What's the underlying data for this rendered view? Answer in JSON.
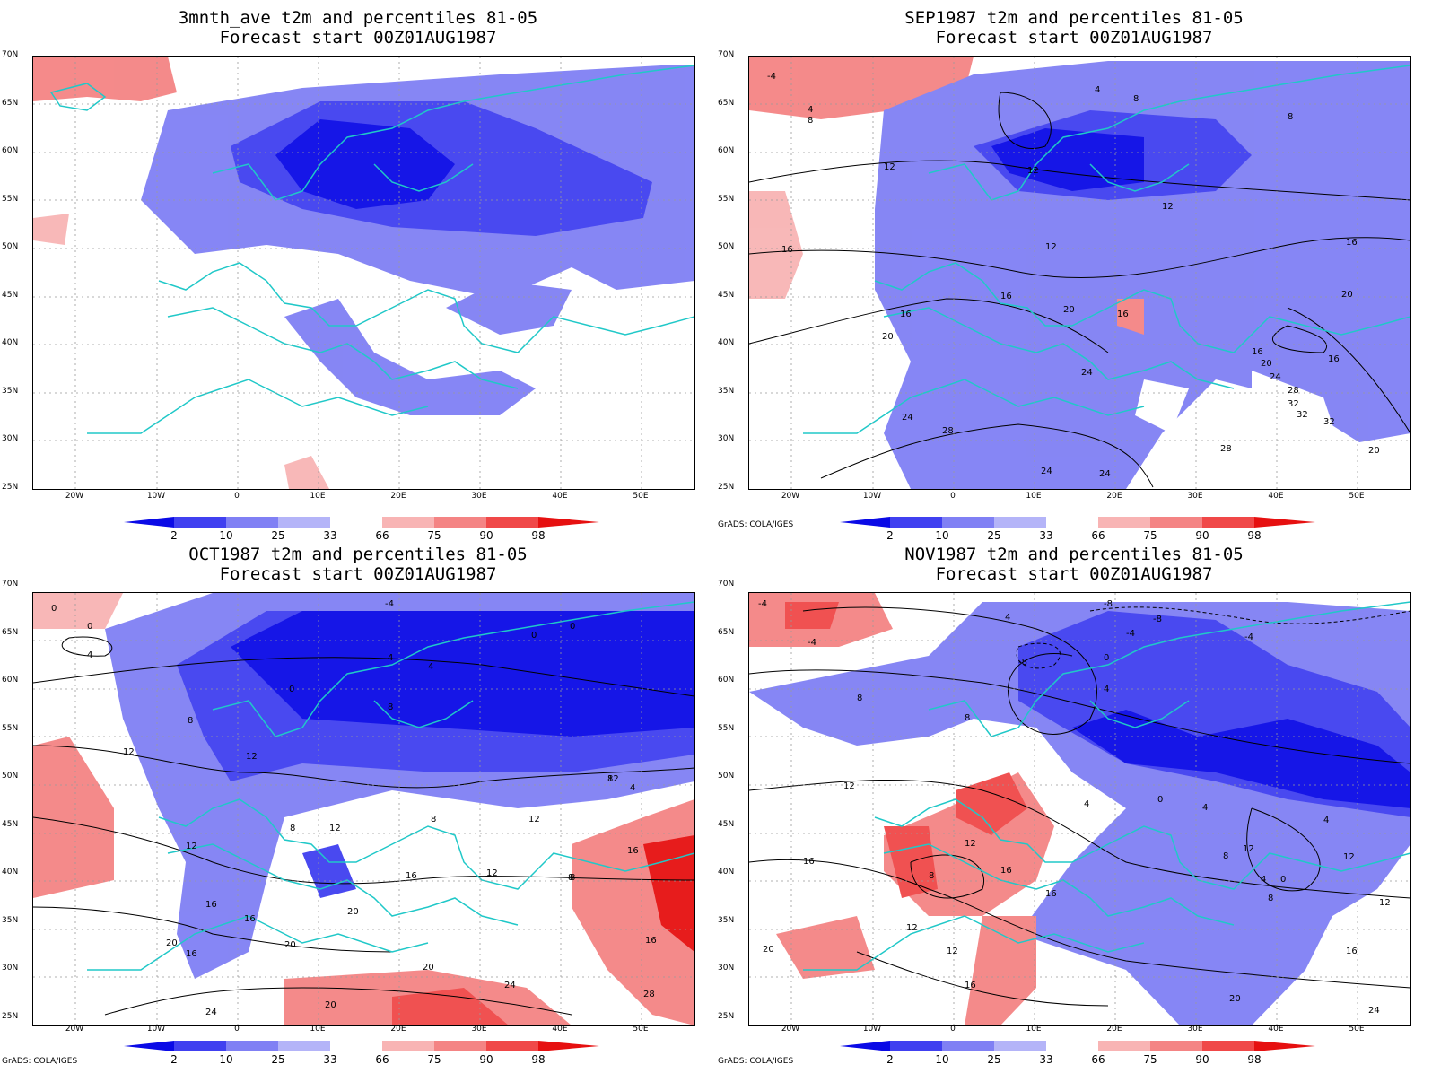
{
  "panels": [
    {
      "id": "p1",
      "title": "3mnth_ave t2m and percentiles 81-05",
      "subtitle": "Forecast start 00Z01AUG1987",
      "credit": "",
      "contour_labels": []
    },
    {
      "id": "p2",
      "title": "SEP1987 t2m and percentiles 81-05",
      "subtitle": "Forecast start 00Z01AUG1987",
      "credit": "GrADS: COLA/IGES",
      "contour_labels": [
        "-4",
        "4",
        "8",
        "4",
        "8",
        "8",
        "12",
        "12",
        "12",
        "16",
        "16",
        "12",
        "16",
        "16",
        "20",
        "20",
        "16",
        "20",
        "24",
        "24",
        "28",
        "24",
        "24",
        "28",
        "32",
        "32",
        "32",
        "20",
        "16",
        "16",
        "20",
        "24",
        "28"
      ]
    },
    {
      "id": "p3",
      "title": "OCT1987 t2m and percentiles 81-05",
      "subtitle": "Forecast start 00Z01AUG1987",
      "credit": "GrADS: COLA/IGES",
      "contour_labels": [
        "0",
        "0",
        "4",
        "-4",
        "4",
        "0",
        "0",
        "0",
        "8",
        "8",
        "4",
        "8",
        "12",
        "4",
        "12",
        "8",
        "8",
        "12",
        "12",
        "12",
        "12",
        "8",
        "16",
        "16",
        "20",
        "16",
        "20",
        "16",
        "20",
        "20",
        "20",
        "24",
        "24",
        "28",
        "16",
        "12",
        "8",
        "16"
      ]
    },
    {
      "id": "p4",
      "title": "NOV1987 t2m and percentiles 81-05",
      "subtitle": "Forecast start 00Z01AUG1987",
      "credit": "GrADS: COLA/IGES",
      "contour_labels": [
        "-4",
        "-4",
        "-8",
        "-8",
        "-4",
        "0",
        "4",
        "-4",
        "-8",
        "4",
        "8",
        "8",
        "12",
        "4",
        "0",
        "4",
        "4",
        "8",
        "12",
        "0",
        "4",
        "8",
        "12",
        "12",
        "16",
        "16",
        "16",
        "12",
        "12",
        "8",
        "12",
        "16",
        "20",
        "16",
        "20",
        "24"
      ]
    }
  ],
  "lat_labels": [
    "70N",
    "65N",
    "60N",
    "55N",
    "50N",
    "45N",
    "40N",
    "35N",
    "30N",
    "25N"
  ],
  "lon_labels": [
    "20W",
    "10W",
    "0",
    "10E",
    "20E",
    "30E",
    "40E",
    "50E"
  ],
  "colorbar_labels": [
    "2",
    "10",
    "25",
    "33",
    "66",
    "75",
    "90",
    "98"
  ],
  "colors": {
    "blue_dark": "#0a0ae6",
    "blue_mid": "#4040f0",
    "blue_light": "#8080f4",
    "blue_pale": "#b4b4f8",
    "red_pale": "#f8b4b4",
    "red_light": "#f48484",
    "red_mid": "#f04848",
    "red_dark": "#e61010",
    "coast": "#20c8c8"
  }
}
